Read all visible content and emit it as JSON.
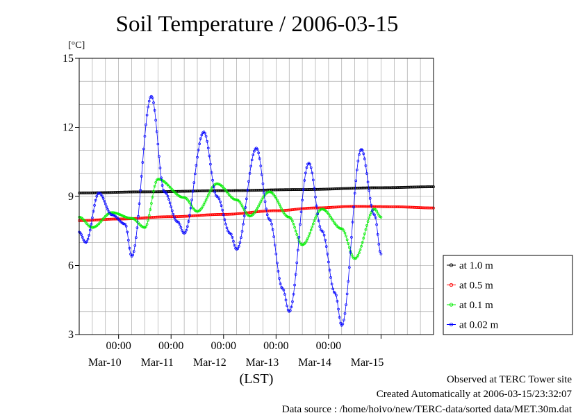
{
  "chart_data": {
    "type": "line",
    "title": "Soil Temperature / 2006-03-15",
    "ylabel": "[°C]",
    "xlabel": "(LST)",
    "ylim": [
      3,
      15
    ],
    "yticks": [
      3,
      6,
      9,
      12,
      15
    ],
    "x_range_days": [
      "2006-03-09 06:00",
      "2006-03-16 00:00"
    ],
    "x_hour_ticks": [
      "00:00",
      "00:00",
      "00:00",
      "00:00",
      "00:00"
    ],
    "x_date_labels": [
      "Mar-10",
      "Mar-11",
      "Mar-12",
      "Mar-13",
      "Mar-14",
      "Mar-15"
    ],
    "grid": true,
    "legend_position": "right",
    "series": [
      {
        "name": "at 1.0 m",
        "color": "#000000",
        "points": [
          [
            "2006-03-09 06:00",
            9.15
          ],
          [
            "2006-03-10 12:00",
            9.2
          ],
          [
            "2006-03-12 00:00",
            9.25
          ],
          [
            "2006-03-13 12:00",
            9.3
          ],
          [
            "2006-03-15 00:00",
            9.38
          ],
          [
            "2006-03-16 00:00",
            9.42
          ]
        ]
      },
      {
        "name": "at 0.5 m",
        "color": "#ff0000",
        "points": [
          [
            "2006-03-09 06:00",
            7.95
          ],
          [
            "2006-03-10 00:00",
            8.02
          ],
          [
            "2006-03-11 00:00",
            8.12
          ],
          [
            "2006-03-12 00:00",
            8.22
          ],
          [
            "2006-03-13 00:00",
            8.38
          ],
          [
            "2006-03-13 18:00",
            8.5
          ],
          [
            "2006-03-14 12:00",
            8.57
          ],
          [
            "2006-03-15 06:00",
            8.55
          ],
          [
            "2006-03-16 00:00",
            8.5
          ]
        ]
      },
      {
        "name": "at 0.1 m",
        "color": "#00ee00",
        "points": [
          [
            "2006-03-09 06:00",
            8.1
          ],
          [
            "2006-03-09 12:00",
            7.65
          ],
          [
            "2006-03-09 21:00",
            8.3
          ],
          [
            "2006-03-10 06:00",
            8.05
          ],
          [
            "2006-03-10 12:00",
            7.65
          ],
          [
            "2006-03-10 18:00",
            9.75
          ],
          [
            "2006-03-11 06:00",
            8.95
          ],
          [
            "2006-03-11 12:00",
            8.35
          ],
          [
            "2006-03-11 21:00",
            9.55
          ],
          [
            "2006-03-12 06:00",
            8.85
          ],
          [
            "2006-03-12 12:00",
            8.15
          ],
          [
            "2006-03-12 21:00",
            9.2
          ],
          [
            "2006-03-13 06:00",
            8.1
          ],
          [
            "2006-03-13 12:00",
            6.9
          ],
          [
            "2006-03-13 21:00",
            8.45
          ],
          [
            "2006-03-14 06:00",
            7.6
          ],
          [
            "2006-03-14 12:00",
            6.3
          ],
          [
            "2006-03-14 21:00",
            8.45
          ],
          [
            "2006-03-15 00:00",
            8.1
          ]
        ]
      },
      {
        "name": "at 0.02 m",
        "color": "#0000ff",
        "points": [
          [
            "2006-03-09 06:00",
            7.45
          ],
          [
            "2006-03-09 09:00",
            7.0
          ],
          [
            "2006-03-09 15:00",
            9.15
          ],
          [
            "2006-03-09 21:00",
            8.2
          ],
          [
            "2006-03-10 03:00",
            7.8
          ],
          [
            "2006-03-10 06:00",
            6.4
          ],
          [
            "2006-03-10 15:00",
            13.35
          ],
          [
            "2006-03-10 21:00",
            9.2
          ],
          [
            "2006-03-11 03:00",
            7.9
          ],
          [
            "2006-03-11 06:00",
            7.4
          ],
          [
            "2006-03-11 15:00",
            11.8
          ],
          [
            "2006-03-11 21:00",
            9.0
          ],
          [
            "2006-03-12 03:00",
            7.4
          ],
          [
            "2006-03-12 06:00",
            6.7
          ],
          [
            "2006-03-12 15:00",
            11.1
          ],
          [
            "2006-03-12 21:00",
            8.0
          ],
          [
            "2006-03-13 03:00",
            5.0
          ],
          [
            "2006-03-13 06:00",
            4.0
          ],
          [
            "2006-03-13 15:00",
            10.45
          ],
          [
            "2006-03-13 21:00",
            7.5
          ],
          [
            "2006-03-14 03:00",
            4.8
          ],
          [
            "2006-03-14 06:00",
            3.4
          ],
          [
            "2006-03-14 15:00",
            11.05
          ],
          [
            "2006-03-14 21:00",
            8.2
          ],
          [
            "2006-03-15 00:00",
            6.5
          ]
        ]
      }
    ]
  },
  "footer": {
    "line1": "Observed at TERC Tower site",
    "line2": "Created Automatically at 2006-03-15/23:32:07",
    "line3": "Data source : /home/hoivo/new/TERC-data/sorted  data/MET.30m.dat"
  }
}
